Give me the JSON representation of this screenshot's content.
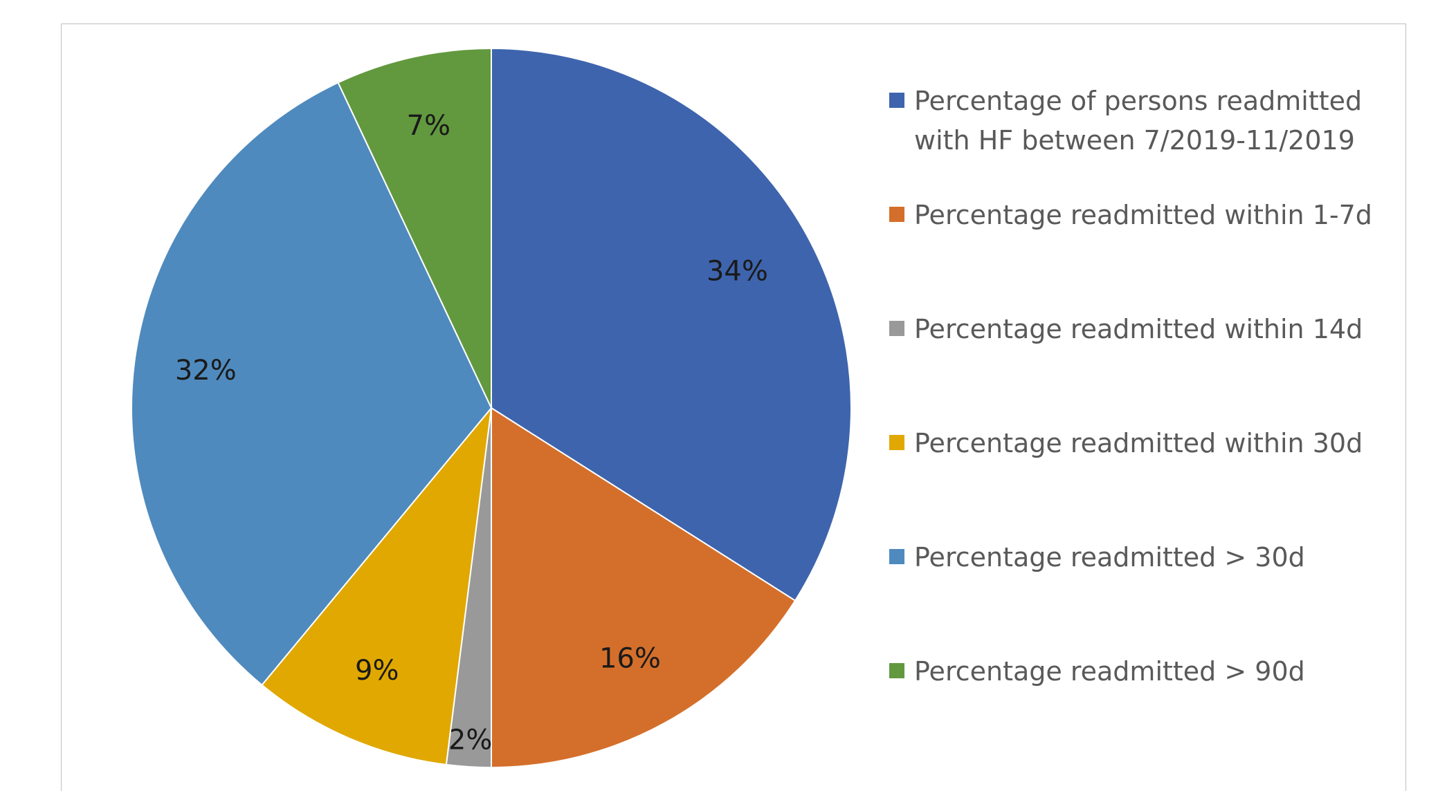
{
  "chart_data": {
    "type": "pie",
    "title": "",
    "categories": [
      "Percentage of persons readmitted with HF between 7/2019-11/2019",
      "Percentage readmitted within 1-7d",
      "Percentage readmitted within 14d",
      "Percentage readmitted within 30d",
      "Percentage readmitted > 30d",
      "Percentage readmitted > 90d"
    ],
    "values": [
      34,
      16,
      2,
      9,
      32,
      7
    ],
    "labels": [
      "34%",
      "16%",
      "2%",
      "9%",
      "32%",
      "7%"
    ],
    "colors": [
      "#3e64ad",
      "#d46f2b",
      "#999999",
      "#e0a800",
      "#4f8abe",
      "#62993e"
    ],
    "legend_position": "right"
  }
}
